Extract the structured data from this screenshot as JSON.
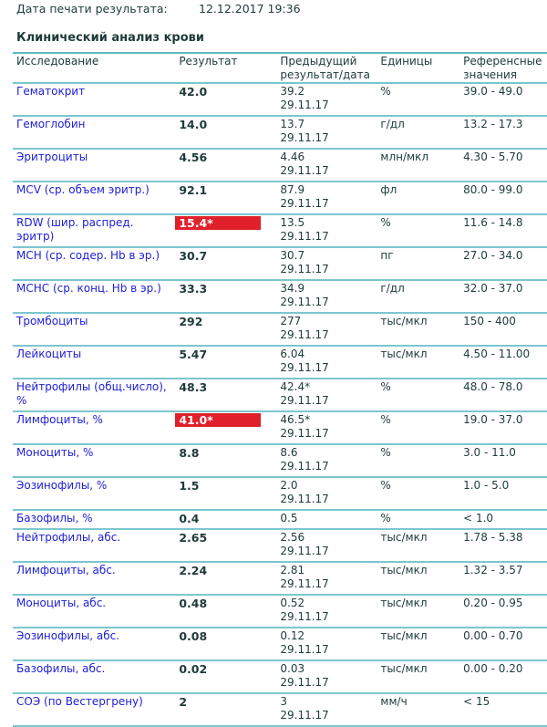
{
  "print_date": {
    "label": "Дата печати результата:",
    "value": "12.12.2017 19:36"
  },
  "section_title": "Клинический анализ крови",
  "columns": [
    "Исследование",
    "Результат",
    "Предыдущий результат/дата",
    "Единицы",
    "Референсные значения"
  ],
  "colors": {
    "accent_line": "#5fb8c4",
    "link": "#2020d8",
    "flag": "#e0202a"
  },
  "rows": [
    {
      "name": "Гематокрит",
      "result": "42.0",
      "flag": false,
      "prev": "39.2",
      "prev_date": "29.11.17",
      "unit": "%",
      "ref": "39.0 - 49.0"
    },
    {
      "name": "Гемоглобин",
      "result": "14.0",
      "flag": false,
      "prev": "13.7",
      "prev_date": "29.11.17",
      "unit": "г/дл",
      "ref": "13.2 - 17.3"
    },
    {
      "name": "Эритроциты",
      "result": "4.56",
      "flag": false,
      "prev": "4.46",
      "prev_date": "29.11.17",
      "unit": "млн/мкл",
      "ref": "4.30 - 5.70"
    },
    {
      "name": "MCV (ср. объем эритр.)",
      "result": "92.1",
      "flag": false,
      "prev": "87.9",
      "prev_date": "29.11.17",
      "unit": "фл",
      "ref": "80.0 - 99.0"
    },
    {
      "name": "RDW (шир. распред. эритр)",
      "result": "15.4*",
      "flag": true,
      "prev": "13.5",
      "prev_date": "29.11.17",
      "unit": "%",
      "ref": "11.6 - 14.8"
    },
    {
      "name": "MCH (ср. содер. Hb в эр.)",
      "result": "30.7",
      "flag": false,
      "prev": "30.7",
      "prev_date": "29.11.17",
      "unit": "пг",
      "ref": "27.0 - 34.0"
    },
    {
      "name": "MCHC (ср. конц. Hb в эр.)",
      "result": "33.3",
      "flag": false,
      "prev": "34.9",
      "prev_date": "29.11.17",
      "unit": "г/дл",
      "ref": "32.0 - 37.0"
    },
    {
      "name": "Тромбоциты",
      "result": "292",
      "flag": false,
      "prev": "277",
      "prev_date": "29.11.17",
      "unit": "тыс/мкл",
      "ref": "150 - 400"
    },
    {
      "name": "Лейкоциты",
      "result": "5.47",
      "flag": false,
      "prev": "6.04",
      "prev_date": "29.11.17",
      "unit": "тыс/мкл",
      "ref": "4.50 - 11.00"
    },
    {
      "name": "Нейтрофилы (общ.число), %",
      "result": "48.3",
      "flag": false,
      "prev": "42.4*",
      "prev_date": "29.11.17",
      "unit": "%",
      "ref": "48.0 - 78.0"
    },
    {
      "name": "Лимфоциты, %",
      "result": "41.0*",
      "flag": true,
      "prev": "46.5*",
      "prev_date": "29.11.17",
      "unit": "%",
      "ref": "19.0 - 37.0"
    },
    {
      "name": "Моноциты, %",
      "result": "8.8",
      "flag": false,
      "prev": "8.6",
      "prev_date": "29.11.17",
      "unit": "%",
      "ref": "3.0 - 11.0"
    },
    {
      "name": "Эозинофилы, %",
      "result": "1.5",
      "flag": false,
      "prev": "2.0",
      "prev_date": "29.11.17",
      "unit": "%",
      "ref": "1.0 - 5.0"
    },
    {
      "name": "Базофилы, %",
      "result": "0.4",
      "flag": false,
      "prev": "0.5",
      "prev_date": "",
      "unit": "%",
      "ref": "< 1.0"
    },
    {
      "name": "Нейтрофилы, абс.",
      "result": "2.65",
      "flag": false,
      "prev": "2.56",
      "prev_date": "29.11.17",
      "unit": "тыс/мкл",
      "ref": "1.78 - 5.38"
    },
    {
      "name": "Лимфоциты, абс.",
      "result": "2.24",
      "flag": false,
      "prev": "2.81",
      "prev_date": "29.11.17",
      "unit": "тыс/мкл",
      "ref": "1.32 - 3.57"
    },
    {
      "name": "Моноциты, абс.",
      "result": "0.48",
      "flag": false,
      "prev": "0.52",
      "prev_date": "29.11.17",
      "unit": "тыс/мкл",
      "ref": "0.20 - 0.95"
    },
    {
      "name": "Эозинофилы, абс.",
      "result": "0.08",
      "flag": false,
      "prev": "0.12",
      "prev_date": "29.11.17",
      "unit": "тыс/мкл",
      "ref": "0.00 - 0.70"
    },
    {
      "name": "Базофилы, абс.",
      "result": "0.02",
      "flag": false,
      "prev": "0.03",
      "prev_date": "29.11.17",
      "unit": "тыс/мкл",
      "ref": "0.00 - 0.20"
    },
    {
      "name": "СОЭ (по Вестергрену)",
      "result": "2",
      "flag": false,
      "prev": "3",
      "prev_date": "29.11.17",
      "unit": "мм/ч",
      "ref": "< 15"
    }
  ]
}
